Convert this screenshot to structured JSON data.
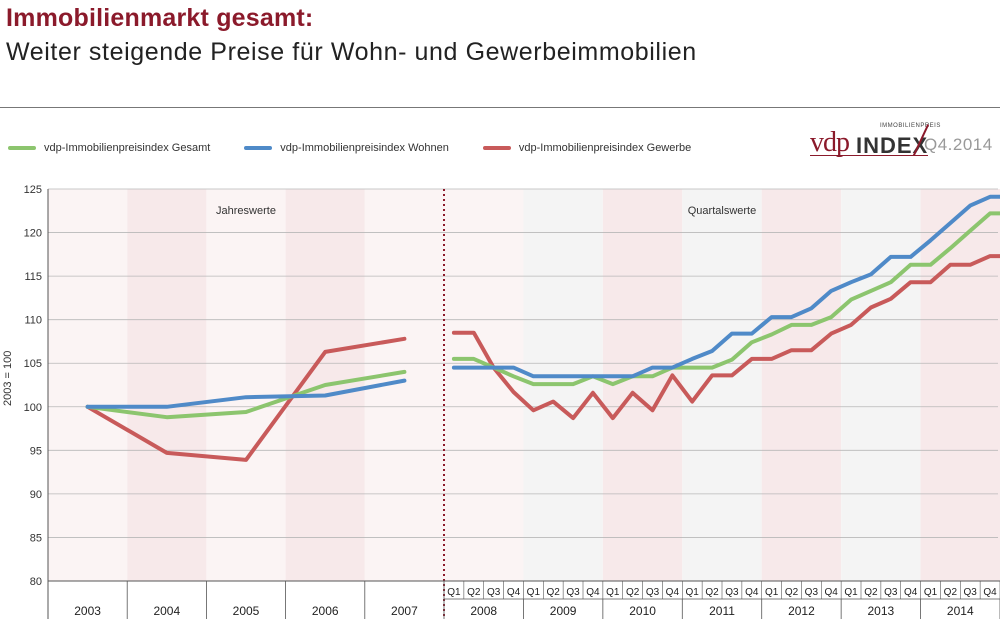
{
  "header": {
    "title": "Immobilienmarkt gesamt:",
    "subtitle": "Weiter steigende Preise für Wohn- und Gewerbeimmobilien"
  },
  "logo": {
    "brand": "vdp",
    "small_text": "IMMOBILIENPREIS",
    "index_text": "INDEX",
    "quarter": "Q4.2014",
    "color": "#8b1a2b"
  },
  "chart_data": {
    "type": "line",
    "title": "",
    "ylabel": "2003 = 100",
    "xlabel": "",
    "ylim": [
      80,
      125
    ],
    "yticks": [
      80,
      85,
      90,
      95,
      100,
      105,
      110,
      115,
      120,
      125
    ],
    "grid": true,
    "legend_position": "top-left",
    "sections": [
      {
        "label": "Jahreswerte"
      },
      {
        "label": "Quartalswerte"
      }
    ],
    "annual_years": [
      "2003",
      "2004",
      "2005",
      "2006",
      "2007"
    ],
    "quarter_years": [
      "2008",
      "2009",
      "2010",
      "2011",
      "2012",
      "2013",
      "2014"
    ],
    "quarter_labels": [
      "Q1",
      "Q2",
      "Q3",
      "Q4"
    ],
    "series": [
      {
        "name": "vdp-Immobilienpreisindex Gesamt",
        "color": "#8cc56e",
        "annual": [
          100.0,
          98.8,
          99.4,
          102.5,
          104.0
        ],
        "quarterly": [
          105.5,
          105.5,
          104.5,
          103.5,
          102.6,
          102.6,
          102.6,
          103.5,
          102.6,
          103.5,
          103.5,
          104.5,
          104.5,
          104.5,
          105.4,
          107.4,
          108.3,
          109.4,
          109.4,
          110.3,
          112.3,
          113.3,
          114.3,
          116.3,
          116.3,
          118.2,
          120.2,
          122.2,
          122.2
        ]
      },
      {
        "name": "vdp-Immobilienpreisindex Wohnen",
        "color": "#4f8ac8",
        "annual": [
          100.0,
          100.0,
          101.1,
          101.3,
          103.0
        ],
        "quarterly": [
          104.5,
          104.5,
          104.5,
          104.5,
          103.5,
          103.5,
          103.5,
          103.5,
          103.5,
          103.5,
          104.5,
          104.5,
          105.5,
          106.4,
          108.4,
          108.4,
          110.3,
          110.3,
          111.3,
          113.3,
          114.3,
          115.2,
          117.2,
          117.2,
          119.1,
          121.1,
          123.1,
          124.1,
          124.1
        ]
      },
      {
        "name": "vdp-Immobilienpreisindex Gewerbe",
        "color": "#c85a5a",
        "annual": [
          100.0,
          94.7,
          93.9,
          106.3,
          107.8
        ],
        "quarterly": [
          108.5,
          108.5,
          104.5,
          101.7,
          99.6,
          100.6,
          98.7,
          101.6,
          98.7,
          101.6,
          99.6,
          103.6,
          100.6,
          103.6,
          103.6,
          105.5,
          105.5,
          106.5,
          106.5,
          108.4,
          109.4,
          111.4,
          112.4,
          114.3,
          114.3,
          116.3,
          116.3,
          117.3,
          117.3
        ]
      }
    ]
  }
}
